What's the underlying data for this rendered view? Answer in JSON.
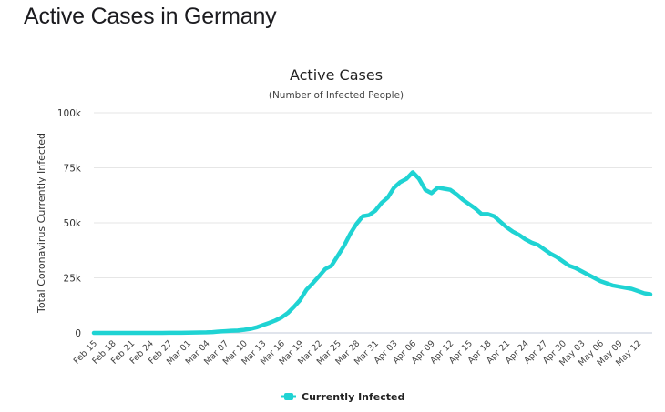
{
  "page": {
    "title": "Active Cases in Germany"
  },
  "chart_data": {
    "type": "line",
    "title": "Active Cases",
    "subtitle": "(Number of Infected People)",
    "xlabel": "",
    "ylabel": "Total Coronavirus Currently Infected",
    "ylim": [
      0,
      100000
    ],
    "y_ticks": [
      0,
      25000,
      50000,
      75000,
      100000
    ],
    "y_tick_labels": [
      "0",
      "25k",
      "50k",
      "75k",
      "100k"
    ],
    "grid": true,
    "legend": {
      "position": "bottom-center",
      "entries": [
        "Currently Infected"
      ]
    },
    "colors": {
      "series": "#1fd3d3",
      "grid": "#e6e6e6",
      "axis": "#c0c8d8"
    },
    "x_tick_labels": [
      "Feb 15",
      "Feb 18",
      "Feb 21",
      "Feb 24",
      "Feb 27",
      "Mar 01",
      "Mar 04",
      "Mar 07",
      "Mar 10",
      "Mar 13",
      "Mar 16",
      "Mar 19",
      "Mar 22",
      "Mar 25",
      "Mar 28",
      "Mar 31",
      "Apr 03",
      "Apr 06",
      "Apr 09",
      "Apr 12",
      "Apr 15",
      "Apr 18",
      "Apr 21",
      "Apr 24",
      "Apr 27",
      "Apr 30",
      "May 03",
      "May 06",
      "May 09",
      "May 12"
    ],
    "x_tick_every": 3,
    "x": [
      "Feb 15",
      "Feb 16",
      "Feb 17",
      "Feb 18",
      "Feb 19",
      "Feb 20",
      "Feb 21",
      "Feb 22",
      "Feb 23",
      "Feb 24",
      "Feb 25",
      "Feb 26",
      "Feb 27",
      "Feb 28",
      "Feb 29",
      "Mar 01",
      "Mar 02",
      "Mar 03",
      "Mar 04",
      "Mar 05",
      "Mar 06",
      "Mar 07",
      "Mar 08",
      "Mar 09",
      "Mar 10",
      "Mar 11",
      "Mar 12",
      "Mar 13",
      "Mar 14",
      "Mar 15",
      "Mar 16",
      "Mar 17",
      "Mar 18",
      "Mar 19",
      "Mar 20",
      "Mar 21",
      "Mar 22",
      "Mar 23",
      "Mar 24",
      "Mar 25",
      "Mar 26",
      "Mar 27",
      "Mar 28",
      "Mar 29",
      "Mar 30",
      "Mar 31",
      "Apr 01",
      "Apr 02",
      "Apr 03",
      "Apr 04",
      "Apr 05",
      "Apr 06",
      "Apr 07",
      "Apr 08",
      "Apr 09",
      "Apr 10",
      "Apr 11",
      "Apr 12",
      "Apr 13",
      "Apr 14",
      "Apr 15",
      "Apr 16",
      "Apr 17",
      "Apr 18",
      "Apr 19",
      "Apr 20",
      "Apr 21",
      "Apr 22",
      "Apr 23",
      "Apr 24",
      "Apr 25",
      "Apr 26",
      "Apr 27",
      "Apr 28",
      "Apr 29",
      "Apr 30",
      "May 01",
      "May 02",
      "May 03",
      "May 04",
      "May 05",
      "May 06",
      "May 07",
      "May 08",
      "May 09",
      "May 10",
      "May 11",
      "May 12",
      "May 13",
      "May 14"
    ],
    "series": [
      {
        "name": "Currently Infected",
        "values": [
          2,
          2,
          2,
          2,
          2,
          2,
          2,
          2,
          2,
          2,
          5,
          10,
          30,
          40,
          60,
          110,
          140,
          180,
          240,
          380,
          600,
          780,
          960,
          1100,
          1400,
          1800,
          2500,
          3500,
          4500,
          5600,
          7000,
          9000,
          11800,
          15000,
          19600,
          22500,
          25700,
          29000,
          30500,
          35000,
          39500,
          45000,
          49500,
          53000,
          53500,
          55500,
          59000,
          61500,
          66000,
          68500,
          70000,
          73000,
          70000,
          65000,
          63500,
          66000,
          65500,
          65000,
          63000,
          60500,
          58500,
          56500,
          54000,
          54000,
          53000,
          50500,
          48000,
          46000,
          44500,
          42500,
          41000,
          40000,
          38000,
          36000,
          34500,
          32500,
          30500,
          29500,
          28000,
          26500,
          25000,
          23500,
          22500,
          21500,
          21000,
          20500,
          20000,
          19000,
          18000,
          17500
        ]
      }
    ]
  }
}
